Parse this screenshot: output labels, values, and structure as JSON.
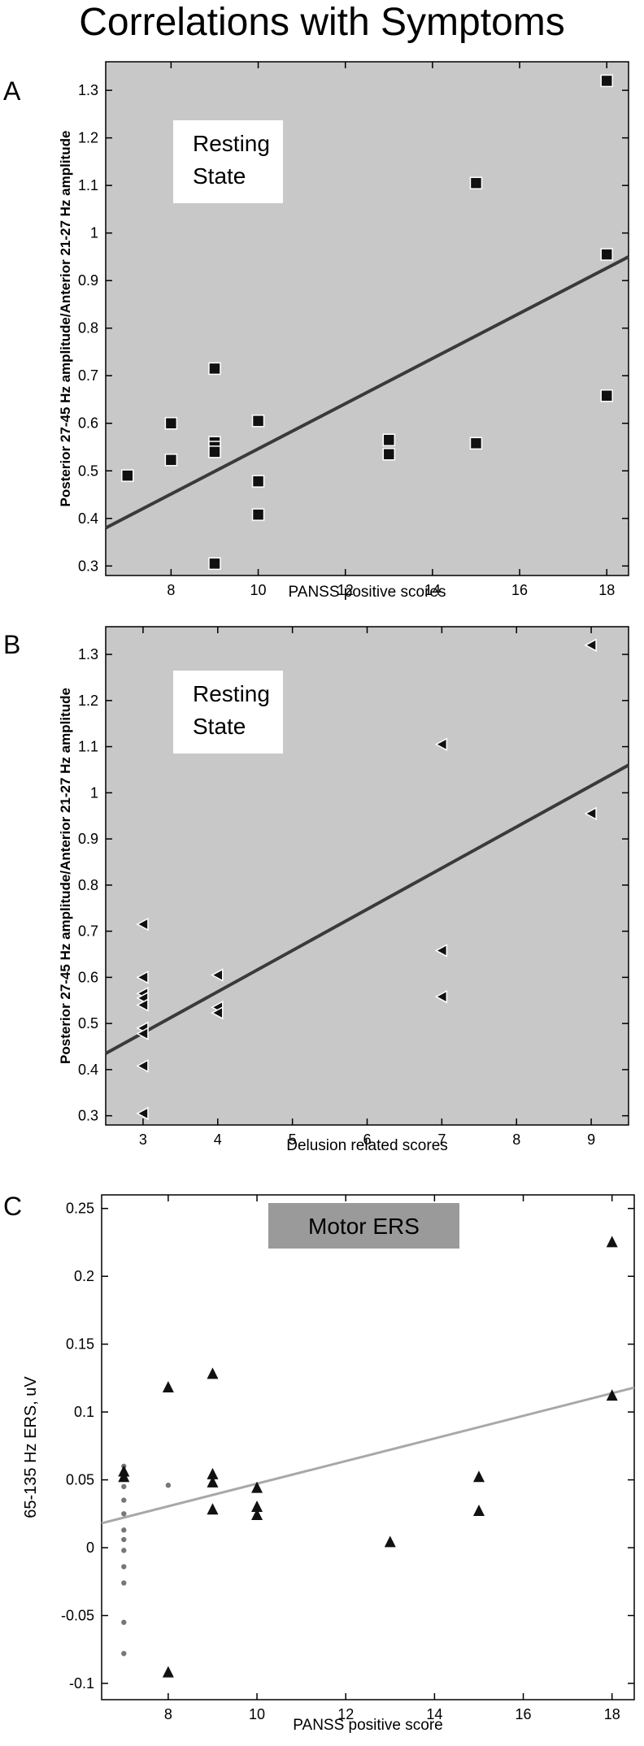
{
  "title": "Correlations with Symptoms",
  "panels": [
    {
      "letter": "A"
    },
    {
      "letter": "B"
    },
    {
      "letter": "C"
    }
  ],
  "chart_data": [
    {
      "type": "scatter",
      "panel": "A",
      "annotation": [
        "Resting",
        "State"
      ],
      "xlabel": "PANSS positive scores",
      "ylabel": "Posterior 27-45 Hz amplitude/Anterior 21-27 Hz amplitude",
      "xlim": [
        6.5,
        18.5
      ],
      "ylim": [
        0.28,
        1.36
      ],
      "xticks": [
        8,
        10,
        12,
        14,
        16,
        18
      ],
      "yticks": [
        0.3,
        0.4,
        0.5,
        0.6,
        0.7,
        0.8,
        0.9,
        1,
        1.1,
        1.2,
        1.3
      ],
      "background": "#c8c8c8",
      "marker": "square",
      "points": [
        {
          "x": 7,
          "y": 0.49
        },
        {
          "x": 8,
          "y": 0.6
        },
        {
          "x": 8,
          "y": 0.523
        },
        {
          "x": 9,
          "y": 0.715
        },
        {
          "x": 9,
          "y": 0.56
        },
        {
          "x": 9,
          "y": 0.55
        },
        {
          "x": 9,
          "y": 0.54
        },
        {
          "x": 9,
          "y": 0.305
        },
        {
          "x": 10,
          "y": 0.605
        },
        {
          "x": 10,
          "y": 0.478
        },
        {
          "x": 10,
          "y": 0.408
        },
        {
          "x": 13,
          "y": 0.565
        },
        {
          "x": 13,
          "y": 0.535
        },
        {
          "x": 15,
          "y": 1.105
        },
        {
          "x": 15,
          "y": 0.558
        },
        {
          "x": 18,
          "y": 1.32
        },
        {
          "x": 18,
          "y": 0.955
        },
        {
          "x": 18,
          "y": 0.658
        }
      ],
      "fit_line": [
        [
          6.5,
          0.38
        ],
        [
          18.5,
          0.95
        ]
      ]
    },
    {
      "type": "scatter",
      "panel": "B",
      "annotation": [
        "Resting",
        "State"
      ],
      "xlabel": "Delusion related scores",
      "ylabel": "Posterior 27-45 Hz amplitude/Anterior 21-27 Hz amplitude",
      "xlim": [
        2.5,
        9.5
      ],
      "ylim": [
        0.28,
        1.36
      ],
      "xticks": [
        3,
        4,
        5,
        6,
        7,
        8,
        9
      ],
      "yticks": [
        0.3,
        0.4,
        0.5,
        0.6,
        0.7,
        0.8,
        0.9,
        1,
        1.1,
        1.2,
        1.3
      ],
      "background": "#c8c8c8",
      "marker": "triangle-left",
      "points": [
        {
          "x": 3,
          "y": 0.715
        },
        {
          "x": 3,
          "y": 0.6
        },
        {
          "x": 3,
          "y": 0.565
        },
        {
          "x": 3,
          "y": 0.555
        },
        {
          "x": 3,
          "y": 0.54
        },
        {
          "x": 3,
          "y": 0.49
        },
        {
          "x": 3,
          "y": 0.478
        },
        {
          "x": 3,
          "y": 0.408
        },
        {
          "x": 3,
          "y": 0.305
        },
        {
          "x": 4,
          "y": 0.605
        },
        {
          "x": 4,
          "y": 0.535
        },
        {
          "x": 4,
          "y": 0.523
        },
        {
          "x": 7,
          "y": 1.105
        },
        {
          "x": 7,
          "y": 0.658
        },
        {
          "x": 7,
          "y": 0.558
        },
        {
          "x": 9,
          "y": 1.32
        },
        {
          "x": 9,
          "y": 0.955
        }
      ],
      "fit_line": [
        [
          2.5,
          0.435
        ],
        [
          9.5,
          1.06
        ]
      ]
    },
    {
      "type": "scatter",
      "panel": "C",
      "annotation": [
        "Motor ERS"
      ],
      "xlabel": "PANSS positive score",
      "ylabel": "65-135 Hz ERS, uV",
      "xlim": [
        6.5,
        18.5
      ],
      "ylim": [
        -0.112,
        0.26
      ],
      "xticks": [
        8,
        10,
        12,
        14,
        16,
        18
      ],
      "yticks": [
        -0.1,
        -0.05,
        0,
        0.05,
        0.1,
        0.15,
        0.2,
        0.25
      ],
      "background": "#ffffff",
      "marker": "triangle-up",
      "points": [
        {
          "x": 7,
          "y": 0.056
        },
        {
          "x": 7,
          "y": 0.052
        },
        {
          "x": 8,
          "y": 0.118
        },
        {
          "x": 8,
          "y": -0.092
        },
        {
          "x": 9,
          "y": 0.128
        },
        {
          "x": 9,
          "y": 0.054
        },
        {
          "x": 9,
          "y": 0.048
        },
        {
          "x": 9,
          "y": 0.028
        },
        {
          "x": 10,
          "y": 0.044
        },
        {
          "x": 10,
          "y": 0.03
        },
        {
          "x": 10,
          "y": 0.024
        },
        {
          "x": 13,
          "y": 0.004
        },
        {
          "x": 15,
          "y": 0.052
        },
        {
          "x": 15,
          "y": 0.027
        },
        {
          "x": 18,
          "y": 0.225
        },
        {
          "x": 18,
          "y": 0.112
        }
      ],
      "small_points": [
        {
          "x": 7,
          "y": 0.06
        },
        {
          "x": 7,
          "y": 0.045
        },
        {
          "x": 7,
          "y": 0.035
        },
        {
          "x": 7,
          "y": 0.025
        },
        {
          "x": 7,
          "y": 0.013
        },
        {
          "x": 7,
          "y": 0.006
        },
        {
          "x": 7,
          "y": -0.002
        },
        {
          "x": 7,
          "y": -0.014
        },
        {
          "x": 7,
          "y": -0.026
        },
        {
          "x": 7,
          "y": -0.055
        },
        {
          "x": 7,
          "y": -0.078
        },
        {
          "x": 8,
          "y": 0.046
        }
      ],
      "fit_line": [
        [
          6.5,
          0.018
        ],
        [
          18.5,
          0.118
        ]
      ]
    }
  ],
  "colors": {
    "plot_bg_gray": "#c8c8c8",
    "marker": "#111111",
    "fit_line_dark": "#3a3a3a",
    "fit_line_light": "#a8a8a8",
    "annotation_box_gray": "#9a9a9a"
  }
}
